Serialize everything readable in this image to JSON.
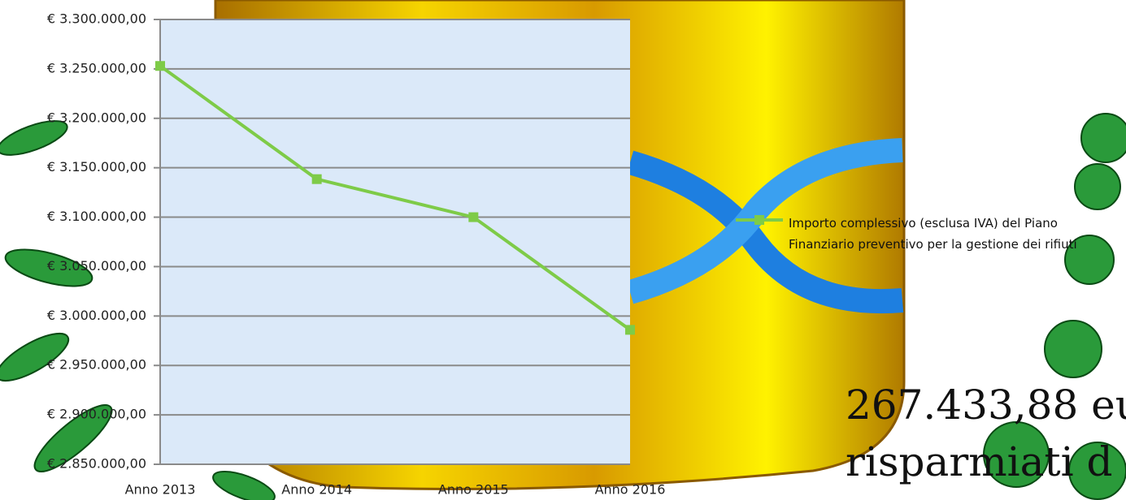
{
  "chart_data": {
    "type": "line",
    "categories": [
      "Anno 2013",
      "Anno 2014",
      "Anno 2015",
      "Anno 2016"
    ],
    "series": [
      {
        "name": "Importo complessivo (esclusa IVA) del Piano Finanziario preventivo per la gestione dei rifiuti",
        "color": "#7ecb48",
        "values": [
          3253000,
          3138500,
          3100000,
          2986000
        ]
      }
    ],
    "ylim": [
      2850000,
      3300000
    ],
    "yticks": [
      {
        "value": 2850000,
        "label": "€ 2.850.000,00"
      },
      {
        "value": 2900000,
        "label": "€ 2.900.000,00"
      },
      {
        "value": 2950000,
        "label": "€ 2.950.000,00"
      },
      {
        "value": 3000000,
        "label": "€ 3.000.000,00"
      },
      {
        "value": 3050000,
        "label": "€ 3.050.000,00"
      },
      {
        "value": 3100000,
        "label": "€ 3.100.000,00"
      },
      {
        "value": 3150000,
        "label": "€ 3.150.000,00"
      },
      {
        "value": 3200000,
        "label": "€ 3.200.000,00"
      },
      {
        "value": 3250000,
        "label": "€ 3.250.000,00"
      },
      {
        "value": 3300000,
        "label": "€ 3.300.000,00"
      }
    ],
    "grid": true,
    "legend": "right",
    "annotations": [
      "267.433,88 eu",
      "risparmiati d"
    ]
  }
}
